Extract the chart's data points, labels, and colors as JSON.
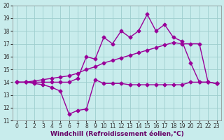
{
  "xlabel": "Windchill (Refroidissement éolien,°C)",
  "background_color": "#c8ecec",
  "grid_color": "#9ecece",
  "line_color": "#990099",
  "xlim": [
    -0.5,
    23.5
  ],
  "ylim": [
    11,
    20
  ],
  "xticks": [
    0,
    1,
    2,
    3,
    4,
    5,
    6,
    7,
    8,
    9,
    10,
    11,
    12,
    13,
    14,
    15,
    16,
    17,
    18,
    19,
    20,
    21,
    22,
    23
  ],
  "yticks": [
    11,
    12,
    13,
    14,
    15,
    16,
    17,
    18,
    19,
    20
  ],
  "line1_x": [
    0,
    1,
    2,
    3,
    4,
    5,
    6,
    7,
    8,
    9,
    10,
    11,
    12,
    13,
    14,
    15,
    16,
    17,
    18,
    19,
    20,
    21,
    22,
    23
  ],
  "line1_y": [
    14.0,
    14.0,
    13.9,
    13.8,
    13.6,
    13.3,
    11.5,
    11.8,
    11.9,
    14.2,
    13.9,
    13.9,
    13.9,
    13.8,
    13.8,
    13.8,
    13.8,
    13.8,
    13.8,
    13.8,
    14.0,
    14.0,
    14.0,
    13.9
  ],
  "line2_x": [
    0,
    1,
    2,
    3,
    4,
    5,
    6,
    7,
    8,
    9,
    10,
    11,
    12,
    13,
    14,
    15,
    16,
    17,
    18,
    19,
    20,
    21,
    22,
    23
  ],
  "line2_y": [
    14.0,
    14.0,
    14.1,
    14.2,
    14.3,
    14.4,
    14.5,
    14.7,
    15.0,
    15.2,
    15.5,
    15.7,
    15.9,
    16.1,
    16.3,
    16.5,
    16.7,
    16.9,
    17.1,
    17.0,
    17.0,
    17.0,
    14.0,
    13.9
  ],
  "line3_x": [
    0,
    1,
    2,
    3,
    4,
    5,
    6,
    7,
    8,
    9,
    10,
    11,
    12,
    13,
    14,
    15,
    16,
    17,
    18,
    19,
    20,
    21,
    22,
    23
  ],
  "line3_y": [
    14.0,
    14.0,
    14.0,
    14.0,
    14.0,
    14.0,
    14.0,
    14.3,
    16.0,
    15.8,
    17.5,
    17.0,
    18.0,
    17.5,
    18.0,
    19.3,
    18.0,
    18.5,
    17.5,
    17.2,
    15.5,
    14.0,
    14.0,
    13.9
  ],
  "marker": "D",
  "markersize": 2.5,
  "linewidth": 1.0,
  "tick_fontsize": 5.5,
  "label_fontsize": 6.5
}
